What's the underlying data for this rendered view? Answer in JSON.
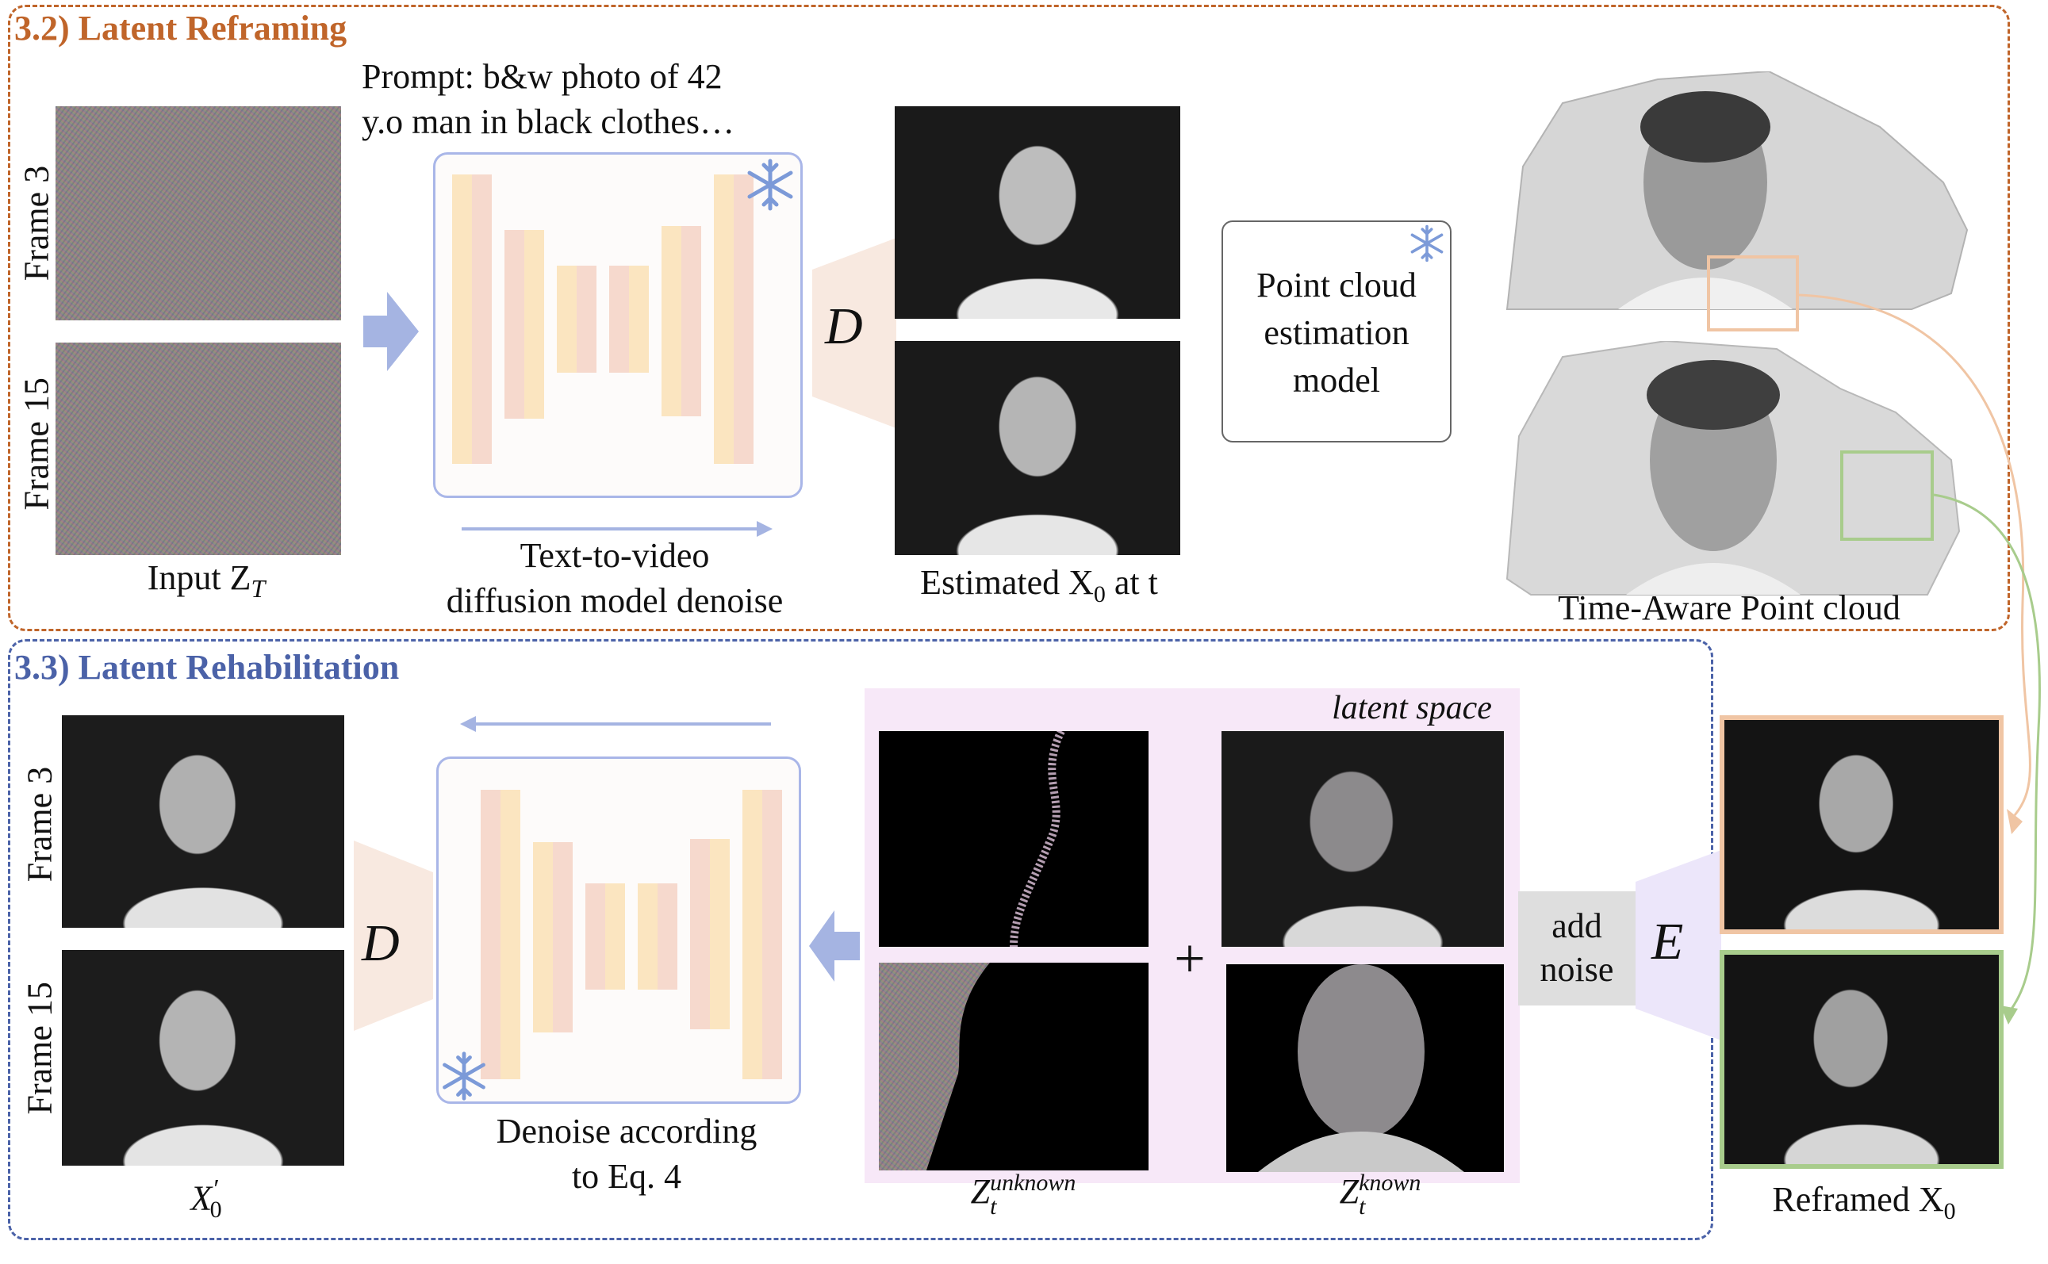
{
  "sections": {
    "reframing": {
      "title": "3.2) Latent Reframing",
      "color": "#c0652a"
    },
    "rehabilitation": {
      "title": "3.3) Latent Rehabilitation",
      "color": "#4b62a8"
    }
  },
  "reframing": {
    "frame_labels": [
      "Frame 3",
      "Frame 15"
    ],
    "input_label": "Input Z",
    "input_sub": "T",
    "prompt_line1": "Prompt: b&w photo of 42",
    "prompt_line2": "y.o man in black clothes…",
    "model_line1": "Text-to-video",
    "model_line2": "diffusion model denoise",
    "decoder_letter": "D",
    "estimated_label": "Estimated X",
    "estimated_sub": "0",
    "estimated_suffix": " at t",
    "pc_model_line1": "Point cloud",
    "pc_model_line2": "estimation",
    "pc_model_line3": "model",
    "pointcloud_label": "Time-Aware Point cloud"
  },
  "rehabilitation": {
    "frame_labels": [
      "Frame 3",
      "Frame 15"
    ],
    "output_label": "X",
    "output_sup": "′",
    "output_sub": "0",
    "decoder_letter": "D",
    "denoise_line1": "Denoise according",
    "denoise_line2": "to Eq. 4",
    "latent_space_label": "latent space",
    "plus_sign": "+",
    "z_unknown": "Z",
    "z_unknown_sub": "t",
    "z_unknown_sup": "unknown",
    "z_known": "Z",
    "z_known_sub": "t",
    "z_known_sup": "known",
    "add_noise_line1": "add",
    "add_noise_line2": "noise",
    "encoder_letter": "E",
    "reframed_label": "Reframed X",
    "reframed_sub": "0"
  },
  "colors": {
    "orange_accent": "#f0c5a4",
    "green_accent": "#a8cc8c",
    "arrow_blue": "#a5b4e2",
    "latent_bg": "#f7e8f8"
  },
  "icons": [
    "snowflake-icon",
    "block-arrow-right",
    "block-arrow-left"
  ]
}
